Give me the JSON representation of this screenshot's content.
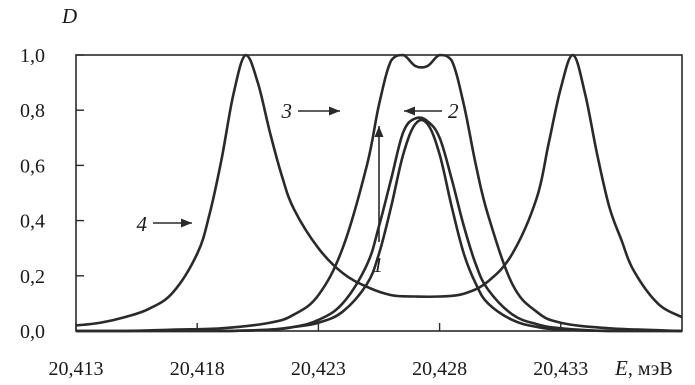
{
  "chart_data": {
    "type": "line",
    "ylabel": "D",
    "xlabel_var": "E",
    "xlabel_unit": ", мэВ",
    "xlim": [
      20.413,
      20.438
    ],
    "ylim": [
      0.0,
      1.0
    ],
    "grid": false,
    "x_ticks": [
      20.413,
      20.418,
      20.423,
      20.428,
      20.433
    ],
    "x_tick_labels": [
      "20,413",
      "20,418",
      "20,423",
      "20,428",
      "20,433"
    ],
    "y_ticks": [
      0.0,
      0.2,
      0.4,
      0.6,
      0.8,
      1.0
    ],
    "y_tick_labels": [
      "0,0",
      "0,2",
      "0,4",
      "0,6",
      "0,8",
      "1,0"
    ],
    "series": [
      {
        "name": "1",
        "x": [
          20.413,
          20.415,
          20.417,
          20.419,
          20.421,
          20.422,
          20.423,
          20.424,
          20.425,
          20.4255,
          20.426,
          20.4265,
          20.427,
          20.4275,
          20.428,
          20.4285,
          20.429,
          20.4295,
          20.43,
          20.431,
          20.432,
          20.433,
          20.435,
          20.438
        ],
        "y": [
          0.0,
          0.0,
          0.0,
          0.0,
          0.005,
          0.015,
          0.03,
          0.07,
          0.17,
          0.28,
          0.45,
          0.64,
          0.75,
          0.75,
          0.64,
          0.45,
          0.28,
          0.17,
          0.1,
          0.04,
          0.015,
          0.005,
          0.0,
          0.0
        ]
      },
      {
        "name": "2",
        "x": [
          20.413,
          20.415,
          20.417,
          20.419,
          20.421,
          20.422,
          20.423,
          20.424,
          20.425,
          20.4255,
          20.426,
          20.4265,
          20.427,
          20.4275,
          20.428,
          20.4285,
          20.429,
          20.4295,
          20.43,
          20.431,
          20.432,
          20.433,
          20.435,
          20.438
        ],
        "y": [
          0.0,
          0.0,
          0.0,
          0.0,
          0.005,
          0.015,
          0.04,
          0.1,
          0.24,
          0.38,
          0.55,
          0.72,
          0.77,
          0.76,
          0.7,
          0.55,
          0.38,
          0.24,
          0.15,
          0.06,
          0.025,
          0.01,
          0.0,
          0.0
        ]
      },
      {
        "name": "3",
        "x": [
          20.413,
          20.415,
          20.417,
          20.419,
          20.421,
          20.422,
          20.423,
          20.424,
          20.425,
          20.4255,
          20.426,
          20.4265,
          20.427,
          20.4275,
          20.428,
          20.4285,
          20.429,
          20.4295,
          20.43,
          20.431,
          20.432,
          20.433,
          20.435,
          20.438
        ],
        "y": [
          0.0,
          0.0,
          0.005,
          0.01,
          0.03,
          0.06,
          0.13,
          0.3,
          0.6,
          0.82,
          0.98,
          1.0,
          0.96,
          0.96,
          1.0,
          0.98,
          0.82,
          0.6,
          0.42,
          0.17,
          0.07,
          0.03,
          0.01,
          0.0
        ]
      },
      {
        "name": "4",
        "x": [
          20.413,
          20.414,
          20.415,
          20.416,
          20.417,
          20.418,
          20.4185,
          20.419,
          20.4195,
          20.42,
          20.4205,
          20.421,
          20.4215,
          20.422,
          20.423,
          20.424,
          20.425,
          20.426,
          20.427,
          20.428,
          20.429,
          20.43,
          20.431,
          20.432,
          20.4325,
          20.433,
          20.4335,
          20.434,
          20.4345,
          20.435,
          20.4355,
          20.436,
          20.437,
          20.438
        ],
        "y": [
          0.02,
          0.03,
          0.05,
          0.08,
          0.14,
          0.28,
          0.42,
          0.62,
          0.86,
          1.0,
          0.9,
          0.72,
          0.56,
          0.44,
          0.3,
          0.21,
          0.16,
          0.13,
          0.125,
          0.125,
          0.135,
          0.18,
          0.28,
          0.48,
          0.68,
          0.88,
          1.0,
          0.86,
          0.64,
          0.45,
          0.33,
          0.22,
          0.1,
          0.05
        ]
      }
    ],
    "annotations": [
      {
        "text": "1",
        "target_series": "1"
      },
      {
        "text": "2",
        "target_series": "2"
      },
      {
        "text": "3",
        "target_series": "3"
      },
      {
        "text": "4",
        "target_series": "4"
      }
    ]
  }
}
